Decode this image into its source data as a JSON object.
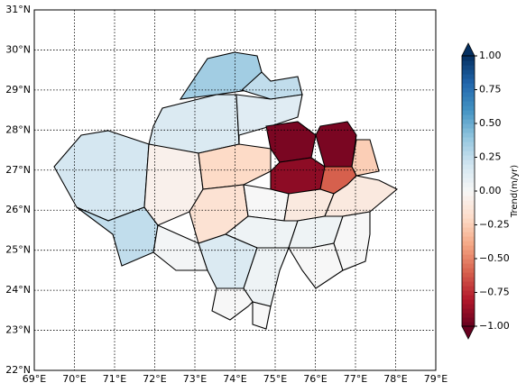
{
  "chart_data": {
    "type": "map",
    "xlim": [
      69,
      79
    ],
    "ylim": [
      22,
      31
    ],
    "xticks": [
      {
        "value": 69,
        "label": "69°E"
      },
      {
        "value": 70,
        "label": "70°E"
      },
      {
        "value": 71,
        "label": "71°E"
      },
      {
        "value": 72,
        "label": "72°E"
      },
      {
        "value": 73,
        "label": "73°E"
      },
      {
        "value": 74,
        "label": "74°E"
      },
      {
        "value": 75,
        "label": "75°E"
      },
      {
        "value": 76,
        "label": "76°E"
      },
      {
        "value": 77,
        "label": "77°E"
      },
      {
        "value": 78,
        "label": "78°E"
      },
      {
        "value": 79,
        "label": "79°E"
      }
    ],
    "yticks": [
      {
        "value": 22,
        "label": "22°N"
      },
      {
        "value": 23,
        "label": "23°N"
      },
      {
        "value": 24,
        "label": "24°N"
      },
      {
        "value": 25,
        "label": "25°N"
      },
      {
        "value": 26,
        "label": "26°N"
      },
      {
        "value": 27,
        "label": "27°N"
      },
      {
        "value": 28,
        "label": "28°N"
      },
      {
        "value": 29,
        "label": "29°N"
      },
      {
        "value": 30,
        "label": "30°N"
      },
      {
        "value": 31,
        "label": "31°N"
      }
    ],
    "grid": true,
    "values": [
      0.35,
      0.25,
      0.15,
      0.12,
      0.18,
      0.25,
      -0.05,
      -0.2,
      -0.95,
      -0.9,
      -0.95,
      -0.25,
      -0.6,
      -0.15,
      0.0,
      -0.1,
      -0.1,
      0.05,
      0.05,
      0.02,
      0.15,
      0.05,
      0.0,
      0.0,
      0.0,
      0.0
    ],
    "colorbar": {
      "label": "Trend(m/yr)",
      "colormap": "RdBu",
      "lim": [
        -1,
        1
      ],
      "ticks": [
        {
          "value": 1,
          "label": "1.00"
        },
        {
          "value": 0.75,
          "label": "0.75"
        },
        {
          "value": 0.5,
          "label": "0.50"
        },
        {
          "value": 0.25,
          "label": "0.25"
        },
        {
          "value": 0,
          "label": "0.00"
        },
        {
          "value": -0.25,
          "label": "−0.25"
        },
        {
          "value": -0.5,
          "label": "−0.50"
        },
        {
          "value": -0.75,
          "label": "−0.75"
        },
        {
          "value": -1,
          "label": "−1.00"
        }
      ]
    }
  }
}
